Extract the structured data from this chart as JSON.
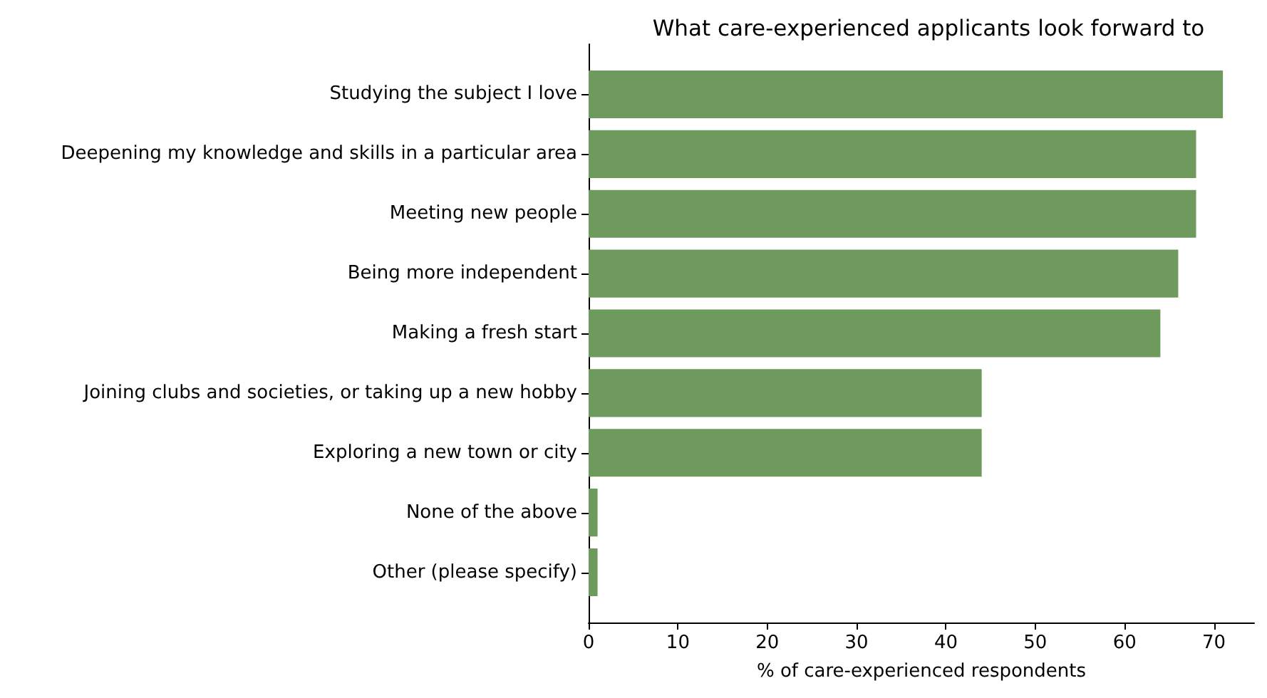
{
  "chart_data": {
    "type": "bar",
    "orientation": "horizontal",
    "title": "What care-experienced applicants look forward to",
    "xlabel": "% of care-experienced respondents",
    "categories": [
      "Studying the subject I love",
      "Deepening my knowledge and skills in a particular area",
      "Meeting new people",
      "Being more independent",
      "Making a fresh start",
      "Joining clubs and societies, or taking up a new hobby",
      "Exploring a new town or city",
      "None of the above",
      "Other (please specify)"
    ],
    "values": [
      71,
      68,
      68,
      66,
      64,
      44,
      44,
      1,
      1
    ],
    "color": "#6f9a5e",
    "xlim": [
      0,
      74.5
    ],
    "xticks": [
      0,
      10,
      20,
      30,
      40,
      50,
      60,
      70
    ]
  }
}
